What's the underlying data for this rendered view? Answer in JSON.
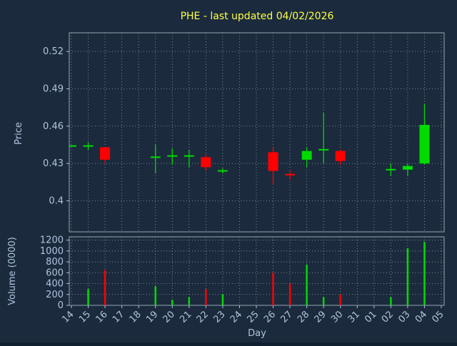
{
  "figure": {
    "title": "PHE - last updated 04/02/2026",
    "xlabel": "Day",
    "price_ylabel": "Price",
    "volume_ylabel": "Volume (0000)"
  },
  "colors": {
    "background": "#1b2b3d",
    "text": "#b0c4de",
    "title": "#ffff44",
    "grid": "#8fa0b0",
    "frame": "#93a4b4",
    "up": "#00db00",
    "down": "#ff0000"
  },
  "chart_data": [
    {
      "type": "candlestick",
      "title": "PHE - last updated 04/02/2026",
      "xlabel": "Day",
      "ylabel": "Price",
      "ylim": [
        0.375,
        0.535
      ],
      "yticks": [
        0.4,
        0.43,
        0.46,
        0.49,
        0.52
      ],
      "ytick_labels": [
        "0.4",
        "0.43",
        "0.46",
        "0.49",
        "0.52"
      ],
      "grid": true,
      "categories": [
        "14",
        "15",
        "16",
        "17",
        "18",
        "19",
        "20",
        "21",
        "22",
        "23",
        "24",
        "25",
        "26",
        "27",
        "28",
        "29",
        "30",
        "31",
        "01",
        "02",
        "03",
        "04",
        "05"
      ],
      "candles": [
        {
          "day": "14",
          "open": 0.444,
          "high": 0.444,
          "low": 0.444,
          "close": 0.444
        },
        {
          "day": "15",
          "open": 0.444,
          "high": 0.447,
          "low": 0.441,
          "close": 0.444
        },
        {
          "day": "16",
          "open": 0.443,
          "high": 0.443,
          "low": 0.43,
          "close": 0.433
        },
        {
          "day": "19",
          "open": 0.435,
          "high": 0.445,
          "low": 0.422,
          "close": 0.435
        },
        {
          "day": "20",
          "open": 0.436,
          "high": 0.442,
          "low": 0.429,
          "close": 0.436
        },
        {
          "day": "21",
          "open": 0.436,
          "high": 0.441,
          "low": 0.427,
          "close": 0.436
        },
        {
          "day": "22",
          "open": 0.435,
          "high": 0.437,
          "low": 0.424,
          "close": 0.427
        },
        {
          "day": "23",
          "open": 0.424,
          "high": 0.426,
          "low": 0.422,
          "close": 0.424
        },
        {
          "day": "26",
          "open": 0.439,
          "high": 0.443,
          "low": 0.413,
          "close": 0.424
        },
        {
          "day": "27",
          "open": 0.421,
          "high": 0.424,
          "low": 0.417,
          "close": 0.42
        },
        {
          "day": "28",
          "open": 0.433,
          "high": 0.443,
          "low": 0.427,
          "close": 0.44
        },
        {
          "day": "29",
          "open": 0.44,
          "high": 0.471,
          "low": 0.43,
          "close": 0.441
        },
        {
          "day": "30",
          "open": 0.44,
          "high": 0.441,
          "low": 0.429,
          "close": 0.432
        },
        {
          "day": "02",
          "open": 0.425,
          "high": 0.43,
          "low": 0.42,
          "close": 0.425
        },
        {
          "day": "03",
          "open": 0.425,
          "high": 0.43,
          "low": 0.42,
          "close": 0.428
        },
        {
          "day": "04",
          "open": 0.43,
          "high": 0.478,
          "low": 0.429,
          "close": 0.461
        }
      ]
    },
    {
      "type": "bar",
      "ylabel": "Volume (0000)",
      "ylim": [
        0,
        1260
      ],
      "yticks": [
        0,
        200,
        400,
        600,
        800,
        1000,
        1200
      ],
      "ytick_labels": [
        "0",
        "200",
        "400",
        "600",
        "800",
        "1000",
        "1200"
      ],
      "grid": true,
      "categories": [
        "14",
        "15",
        "16",
        "17",
        "18",
        "19",
        "20",
        "21",
        "22",
        "23",
        "24",
        "25",
        "26",
        "27",
        "28",
        "29",
        "30",
        "31",
        "01",
        "02",
        "03",
        "04",
        "05"
      ],
      "values": [
        0,
        300,
        650,
        0,
        0,
        350,
        100,
        150,
        300,
        200,
        0,
        0,
        600,
        400,
        750,
        150,
        200,
        0,
        0,
        150,
        1050,
        1170,
        0
      ]
    }
  ]
}
